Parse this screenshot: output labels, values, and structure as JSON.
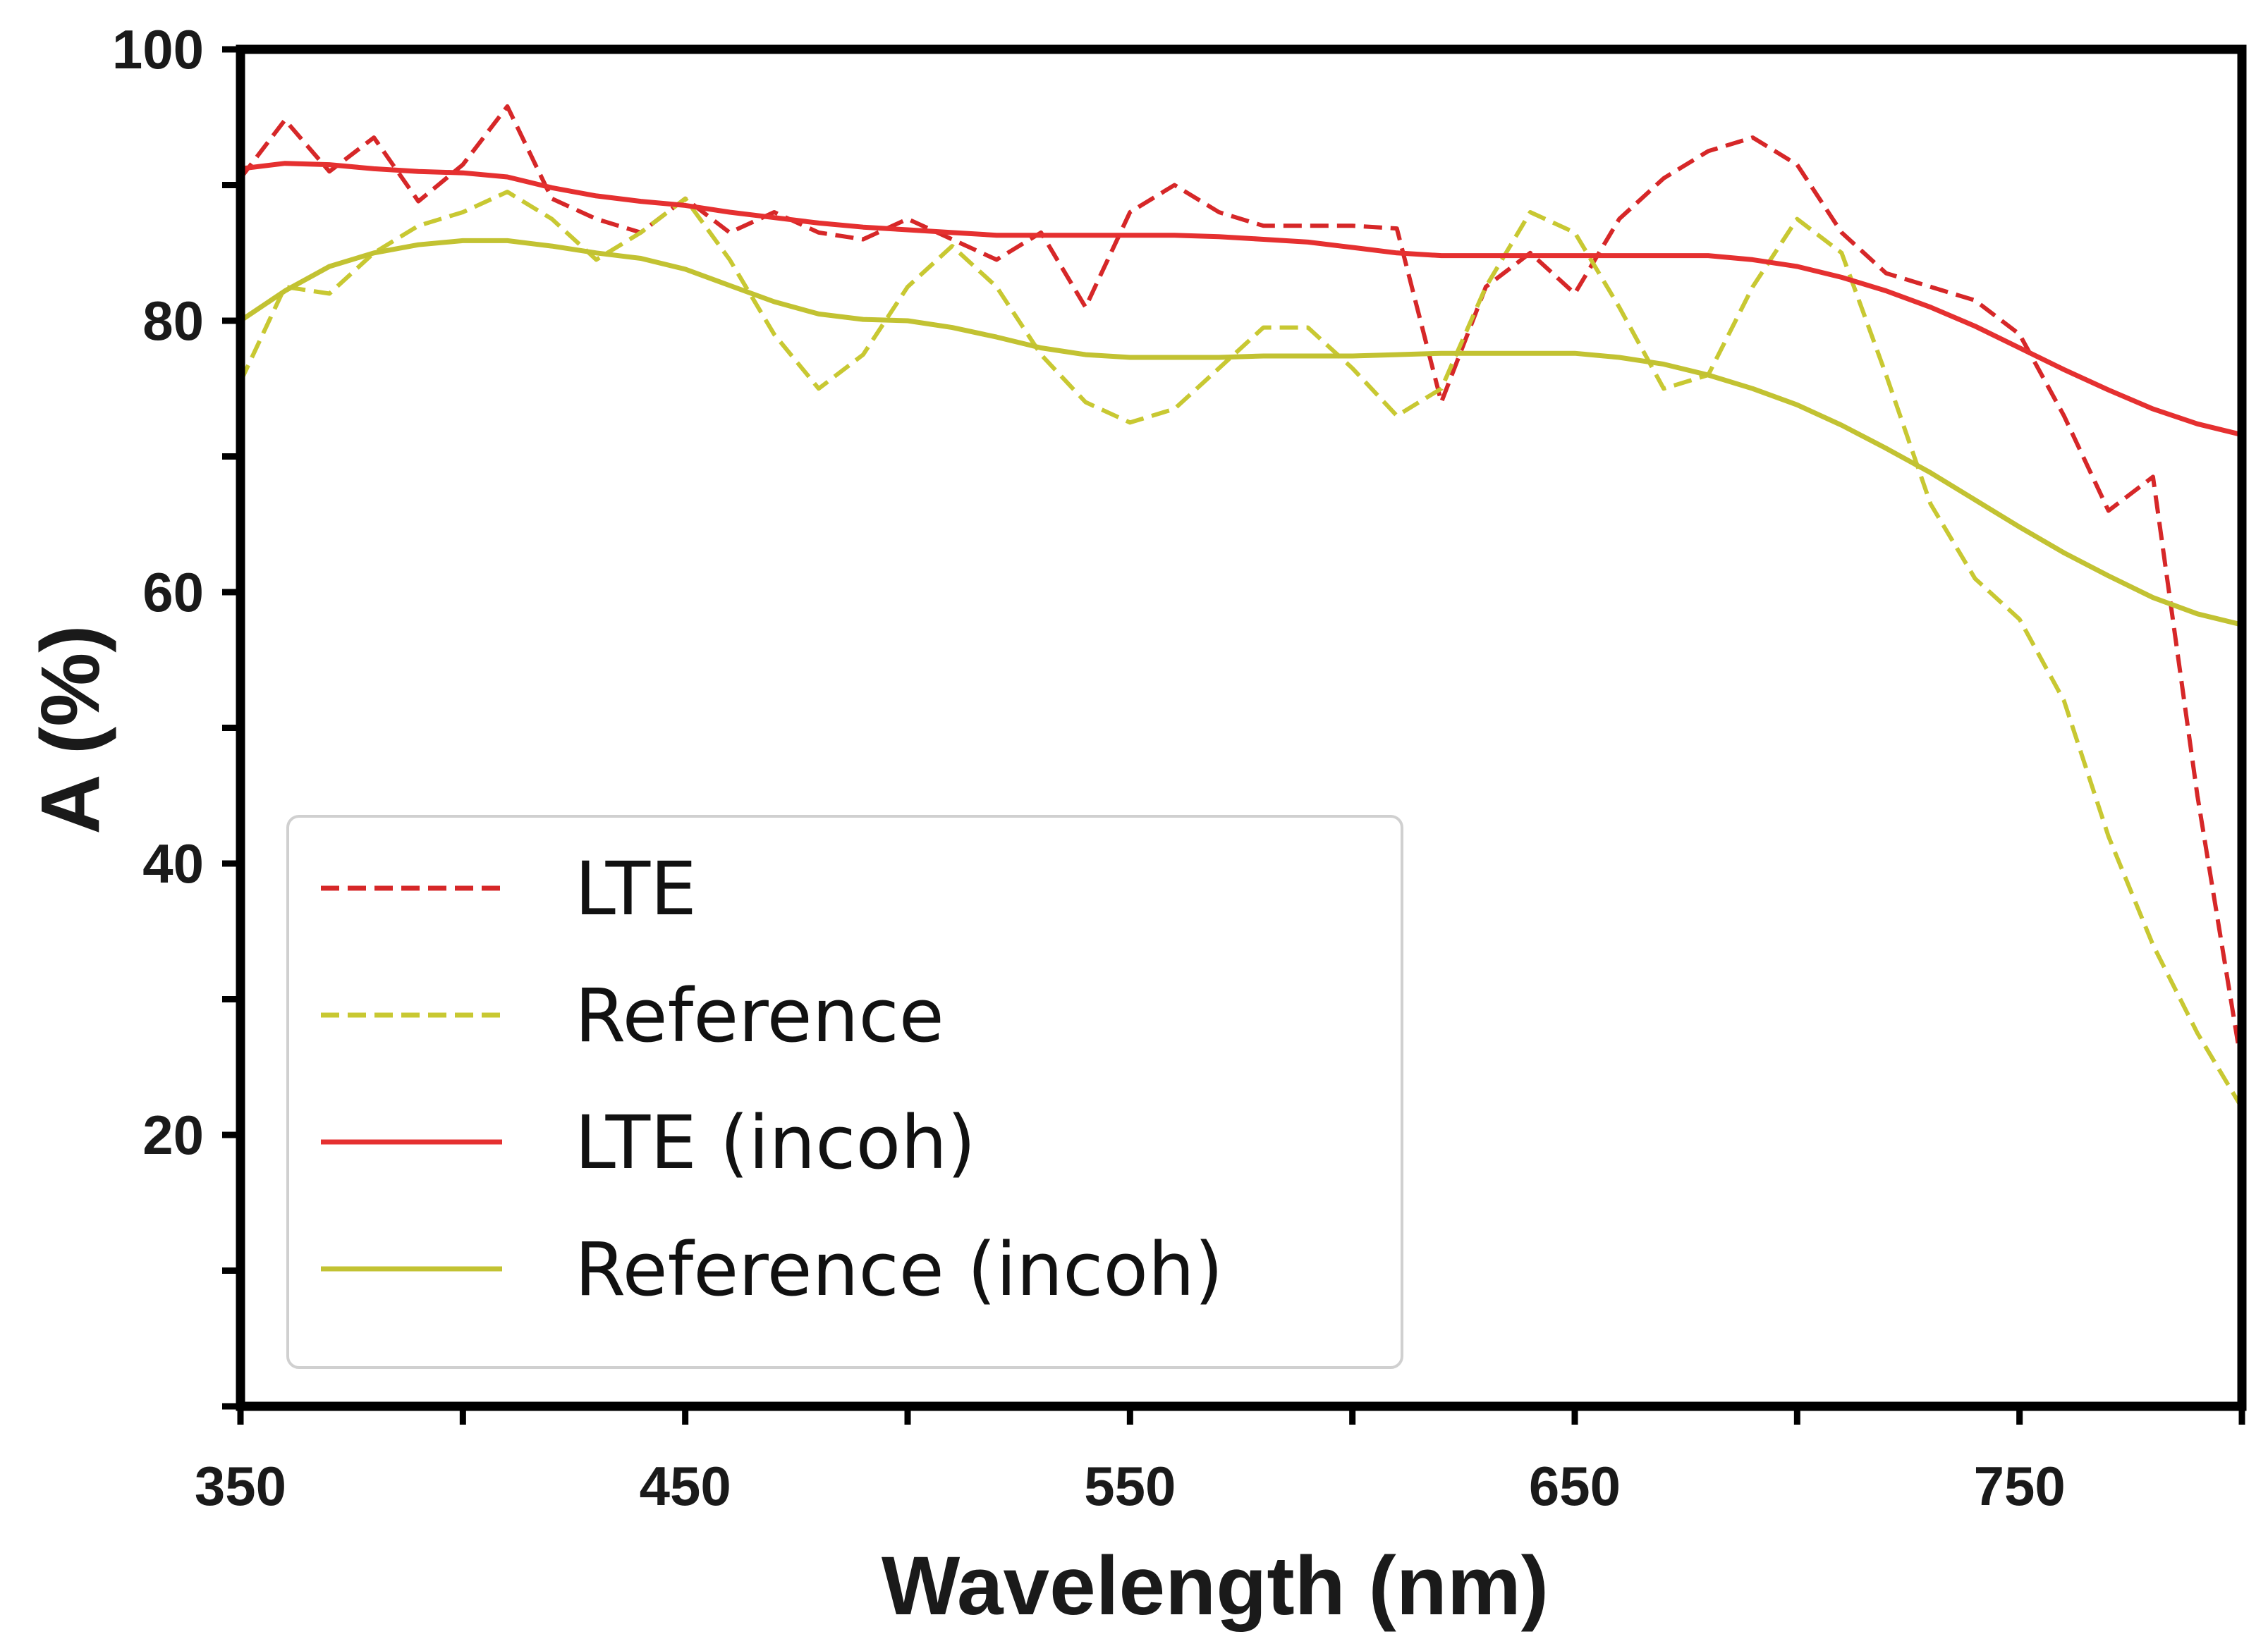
{
  "chart_data": {
    "type": "line",
    "title": "",
    "xlabel": "Wavelength (nm)",
    "ylabel": "A (%)",
    "xlim": [
      350,
      800
    ],
    "ylim": [
      0,
      100
    ],
    "xticks": [
      350,
      400,
      450,
      500,
      550,
      600,
      650,
      700,
      750,
      800
    ],
    "xtick_labels": [
      "350",
      "450",
      "550",
      "650",
      "750"
    ],
    "xtick_label_values": [
      350,
      450,
      550,
      650,
      750
    ],
    "yticks": [
      0,
      10,
      20,
      30,
      40,
      50,
      60,
      70,
      80,
      90,
      100
    ],
    "ytick_labels": [
      "20",
      "40",
      "60",
      "80",
      "100"
    ],
    "ytick_label_values": [
      20,
      40,
      60,
      80,
      100
    ],
    "grid": false,
    "legend_position": "lower-left",
    "series": [
      {
        "name": "LTE",
        "color": "#d62728",
        "dash": "dashed",
        "x": [
          350,
          360,
          370,
          380,
          390,
          400,
          410,
          420,
          430,
          440,
          450,
          460,
          470,
          480,
          490,
          500,
          510,
          520,
          530,
          540,
          550,
          560,
          570,
          580,
          590,
          600,
          610,
          620,
          630,
          640,
          650,
          660,
          670,
          680,
          690,
          700,
          710,
          720,
          730,
          740,
          750,
          760,
          770,
          780,
          790,
          800
        ],
        "y": [
          90.5,
          94.8,
          91.0,
          93.5,
          88.8,
          91.5,
          95.8,
          89.0,
          87.5,
          86.5,
          89.0,
          86.5,
          88.0,
          86.5,
          86.0,
          87.5,
          86.0,
          84.5,
          86.5,
          81.0,
          88.0,
          90.0,
          88.0,
          87.0,
          87.0,
          87.0,
          86.8,
          74.0,
          82.5,
          85.0,
          82.0,
          87.5,
          90.5,
          92.5,
          93.5,
          91.5,
          86.5,
          83.5,
          82.5,
          81.5,
          79.0,
          73.0,
          66.0,
          68.5,
          45.0,
          25.0
        ]
      },
      {
        "name": "Reference",
        "color": "#c8c832",
        "dash": "dashed",
        "x": [
          350,
          360,
          370,
          380,
          390,
          400,
          410,
          420,
          430,
          440,
          450,
          460,
          470,
          480,
          490,
          500,
          510,
          520,
          530,
          540,
          550,
          560,
          570,
          580,
          590,
          600,
          610,
          620,
          630,
          640,
          650,
          660,
          670,
          680,
          690,
          700,
          710,
          720,
          730,
          740,
          750,
          760,
          770,
          780,
          790,
          800
        ],
        "y": [
          75.5,
          82.5,
          82.0,
          85.0,
          87.0,
          88.0,
          89.5,
          87.5,
          84.5,
          86.5,
          89.0,
          84.5,
          79.0,
          75.0,
          77.5,
          82.5,
          85.5,
          82.5,
          77.5,
          74.0,
          72.5,
          73.5,
          76.5,
          79.5,
          79.5,
          76.5,
          73.0,
          75.0,
          82.5,
          88.0,
          86.5,
          81.0,
          75.0,
          76.0,
          82.5,
          87.5,
          85.0,
          76.0,
          66.5,
          61.0,
          58.0,
          52.0,
          42.0,
          34.0,
          27.5,
          22.0
        ]
      },
      {
        "name": "LTE (incoh)",
        "color": "#e53030",
        "dash": "solid",
        "x": [
          350,
          360,
          370,
          380,
          390,
          400,
          410,
          420,
          430,
          440,
          450,
          460,
          470,
          480,
          490,
          500,
          510,
          520,
          530,
          540,
          550,
          560,
          570,
          580,
          590,
          600,
          610,
          620,
          630,
          640,
          650,
          660,
          670,
          680,
          690,
          700,
          710,
          720,
          730,
          740,
          750,
          760,
          770,
          780,
          790,
          800
        ],
        "y": [
          91.2,
          91.6,
          91.5,
          91.2,
          91.0,
          90.9,
          90.6,
          89.8,
          89.2,
          88.8,
          88.5,
          88.0,
          87.6,
          87.2,
          86.9,
          86.7,
          86.5,
          86.3,
          86.3,
          86.3,
          86.3,
          86.3,
          86.2,
          86.0,
          85.8,
          85.4,
          85.0,
          84.8,
          84.8,
          84.8,
          84.8,
          84.8,
          84.8,
          84.8,
          84.5,
          84.0,
          83.2,
          82.2,
          81.0,
          79.6,
          78.0,
          76.4,
          74.9,
          73.5,
          72.4,
          71.6
        ]
      },
      {
        "name": "Reference (incoh)",
        "color": "#c2c232",
        "dash": "solid",
        "x": [
          350,
          360,
          370,
          380,
          390,
          400,
          410,
          420,
          430,
          440,
          450,
          460,
          470,
          480,
          490,
          500,
          510,
          520,
          530,
          540,
          550,
          560,
          570,
          580,
          590,
          600,
          610,
          620,
          630,
          640,
          650,
          660,
          670,
          680,
          690,
          700,
          710,
          720,
          730,
          740,
          750,
          760,
          770,
          780,
          790,
          800
        ],
        "y": [
          80.0,
          82.2,
          84.0,
          85.0,
          85.6,
          85.9,
          85.9,
          85.5,
          85.0,
          84.6,
          83.8,
          82.6,
          81.4,
          80.5,
          80.1,
          80.0,
          79.5,
          78.8,
          78.0,
          77.5,
          77.3,
          77.3,
          77.3,
          77.4,
          77.4,
          77.4,
          77.5,
          77.6,
          77.6,
          77.6,
          77.6,
          77.3,
          76.8,
          76.0,
          75.0,
          73.8,
          72.3,
          70.6,
          68.8,
          66.8,
          64.8,
          62.9,
          61.2,
          59.6,
          58.4,
          57.6
        ]
      }
    ]
  }
}
